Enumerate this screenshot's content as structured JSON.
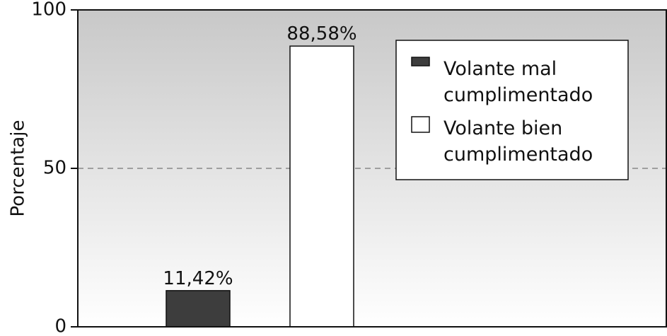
{
  "chart_data": {
    "type": "bar",
    "categories": [
      "Volante mal cumplimentado",
      "Volante bien cumplimentado"
    ],
    "values": [
      11.42,
      88.58
    ],
    "data_labels": [
      "11,42%",
      "88,58%"
    ],
    "colors": [
      "#3d3d3d",
      "#ffffff"
    ],
    "ylabel": "Porcentaje",
    "ylim": [
      0,
      100
    ],
    "yticks": [
      0,
      50,
      100
    ],
    "ytick_labels": [
      "0",
      "50",
      "100"
    ],
    "gridline_at": 50,
    "grid": "dashed horizontal at 50",
    "legend": {
      "position": "top-right",
      "entries": [
        {
          "lines": [
            "Volante mal",
            "cumplimentado"
          ],
          "color": "#3d3d3d"
        },
        {
          "lines": [
            "Volante bien",
            "cumplimentado"
          ],
          "color": "#ffffff"
        }
      ]
    },
    "background": "gray-to-white vertical gradient"
  }
}
